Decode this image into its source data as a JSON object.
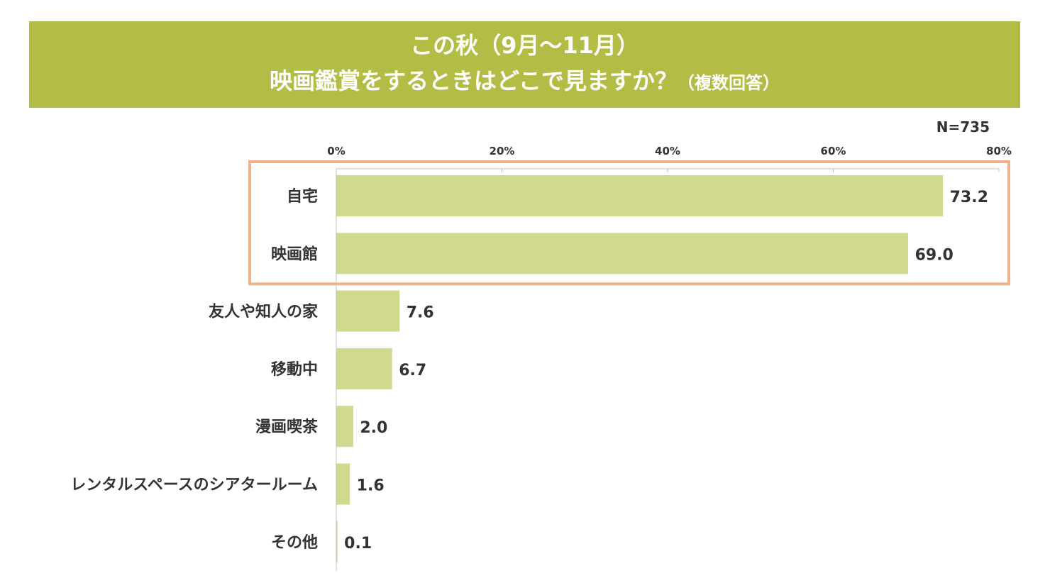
{
  "header": {
    "title_line1": "この秋（9月～11月）",
    "title_line2": "映画鑑賞をするときはどこで見ますか？",
    "title_note": "（複数回答）",
    "background": "#b3bd45"
  },
  "sample_size": "N=735",
  "highlight_color": "#eeb38a",
  "chart_data": {
    "type": "bar",
    "orientation": "horizontal",
    "title": "この秋（9月～11月） 映画鑑賞をするときはどこで見ますか？（複数回答）",
    "categories": [
      "自宅",
      "映画館",
      "友人や知人の家",
      "移動中",
      "漫画喫茶",
      "レンタルスペースのシアタールーム",
      "その他"
    ],
    "values": [
      73.2,
      69.0,
      7.6,
      6.7,
      2.0,
      1.6,
      0.1
    ],
    "value_labels": [
      "73.2",
      "69.0",
      "7.6",
      "6.7",
      "2.0",
      "1.6",
      "0.1"
    ],
    "xlim": [
      0,
      80
    ],
    "x_ticks": [
      0,
      20,
      40,
      60,
      80
    ],
    "x_tick_labels": [
      "0%",
      "20%",
      "40%",
      "60%",
      "80%"
    ],
    "x_axis_position": "top",
    "bar_color": "#d1d98f",
    "grid": false,
    "highlighted_categories": [
      "自宅",
      "映画館"
    ]
  }
}
